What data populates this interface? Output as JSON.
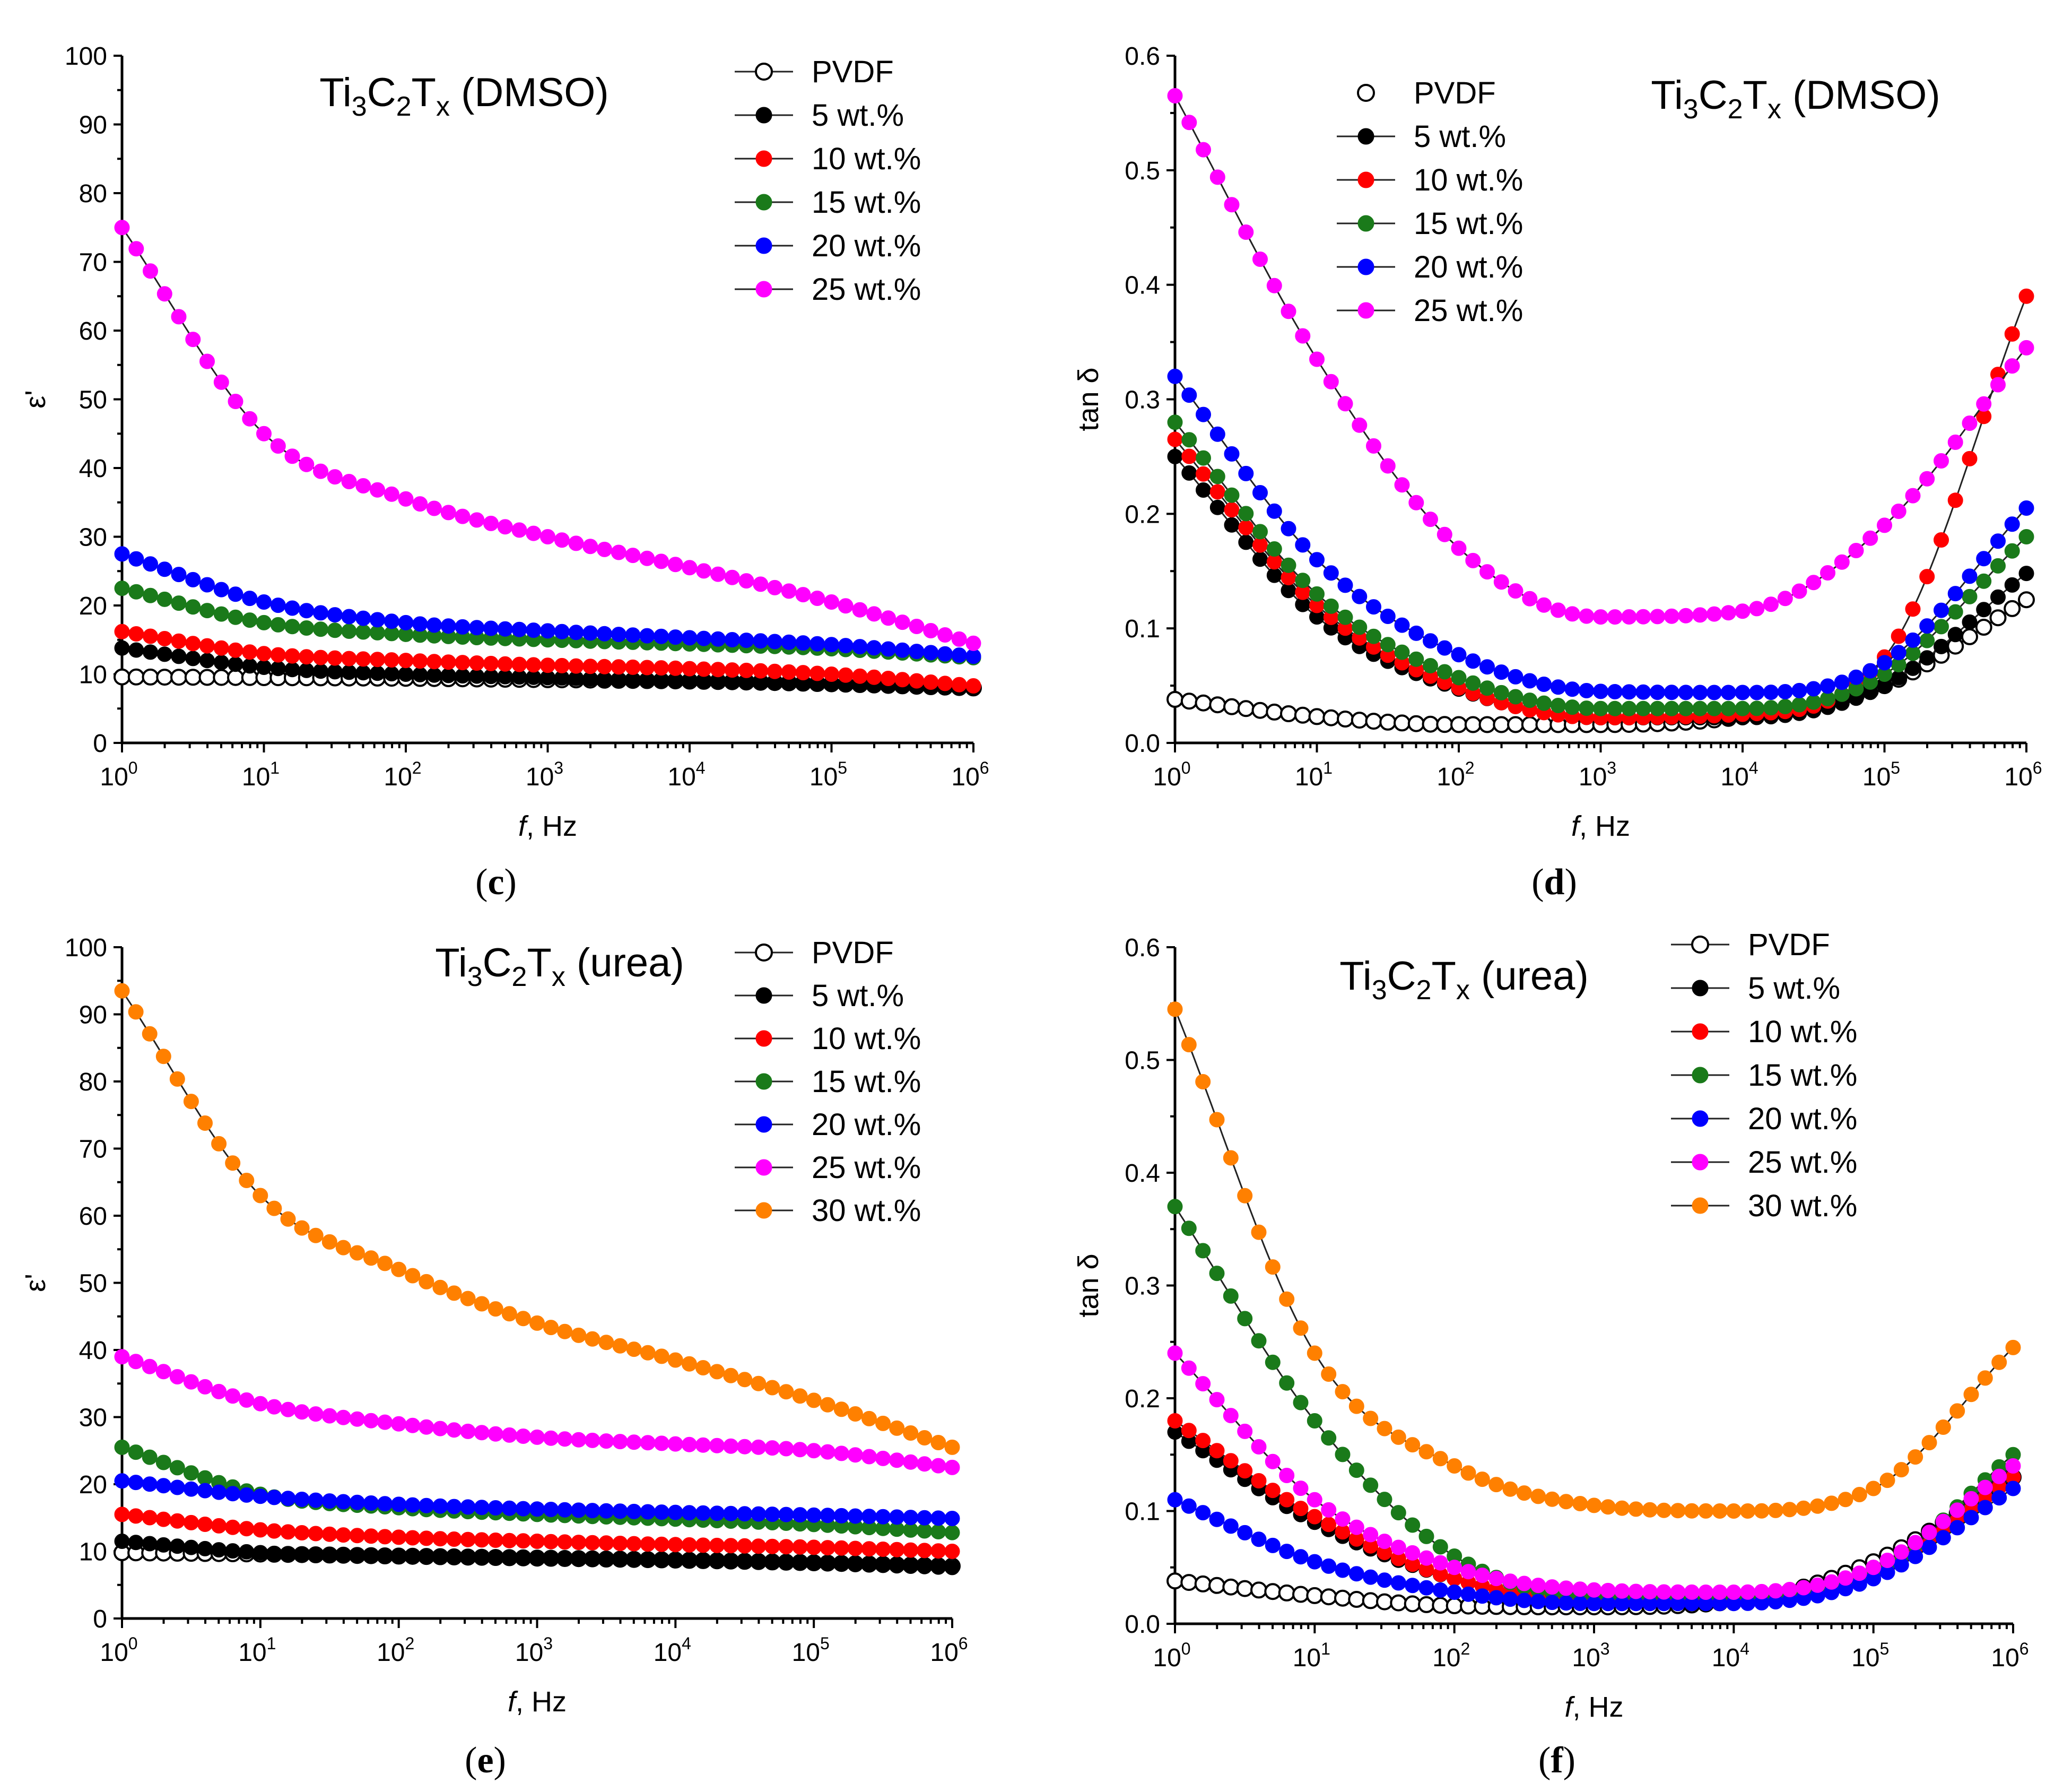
{
  "figure": {
    "panels": [
      "c",
      "d",
      "e",
      "f"
    ]
  },
  "chart_data": [
    {
      "id": "c",
      "type": "scatter",
      "panel_label": "c",
      "title_parts": {
        "ti": "Ti",
        "n3": "3",
        "c": "C",
        "n2": "2",
        "t": "T",
        "x": "x",
        "rest": " (DMSO)"
      },
      "xlabel_italic": "f",
      "xlabel_rest": ", Hz",
      "ylabel": "ε'",
      "xscale": "log",
      "xlim": [
        1,
        1000000
      ],
      "ylim": [
        0,
        100
      ],
      "yticks": [
        0,
        10,
        20,
        30,
        40,
        50,
        60,
        70,
        80,
        90,
        100
      ],
      "ytick_labels": [
        "0",
        "10",
        "20",
        "30",
        "40",
        "50",
        "60",
        "70",
        "80",
        "90",
        "100"
      ],
      "xticks": [
        {
          "base": "10",
          "exp": "0"
        },
        {
          "base": "10",
          "exp": "1"
        },
        {
          "base": "10",
          "exp": "2"
        },
        {
          "base": "10",
          "exp": "3"
        },
        {
          "base": "10",
          "exp": "4"
        },
        {
          "base": "10",
          "exp": "5"
        },
        {
          "base": "10",
          "exp": "6"
        }
      ],
      "legend_position": "top-right",
      "series": [
        {
          "name": "PVDF",
          "color": "#ffffff",
          "edge": "#000000",
          "open": true,
          "log_f": [
            0,
            1,
            2,
            3,
            4,
            5,
            6
          ],
          "values": [
            9.6,
            9.5,
            9.4,
            9.2,
            9.0,
            8.6,
            8.0
          ]
        },
        {
          "name": "5 wt.%",
          "color": "#000000",
          "edge": "#000000",
          "open": false,
          "log_f": [
            0,
            1,
            2,
            3,
            4,
            5,
            6
          ],
          "values": [
            13.8,
            11.0,
            10.0,
            9.5,
            9.0,
            8.6,
            8.0
          ]
        },
        {
          "name": "10 wt.%",
          "color": "#ff0000",
          "edge": "#ff0000",
          "open": false,
          "log_f": [
            0,
            1,
            2,
            3,
            4,
            5,
            6
          ],
          "values": [
            16.2,
            13.0,
            12.0,
            11.3,
            10.8,
            10.0,
            8.3
          ]
        },
        {
          "name": "15 wt.%",
          "color": "#1a7a1a",
          "edge": "#1a7a1a",
          "open": false,
          "log_f": [
            0,
            1,
            2,
            3,
            4,
            5,
            6
          ],
          "values": [
            22.5,
            17.5,
            15.8,
            15.0,
            14.4,
            13.7,
            12.4
          ]
        },
        {
          "name": "20 wt.%",
          "color": "#0000ff",
          "edge": "#0000ff",
          "open": false,
          "log_f": [
            0,
            1,
            2,
            3,
            4,
            5,
            6
          ],
          "values": [
            27.5,
            20.5,
            17.5,
            16.3,
            15.3,
            14.3,
            12.6
          ]
        },
        {
          "name": "25 wt.%",
          "color": "#ff00ff",
          "edge": "#ff00ff",
          "open": false,
          "log_f": [
            0,
            1,
            2,
            3,
            4,
            5,
            6
          ],
          "values": [
            75.0,
            45.0,
            35.5,
            30.0,
            25.5,
            20.5,
            14.5
          ]
        }
      ]
    },
    {
      "id": "d",
      "type": "scatter",
      "panel_label": "d",
      "title_parts": {
        "ti": "Ti",
        "n3": "3",
        "c": "C",
        "n2": "2",
        "t": "T",
        "x": "x",
        "rest": " (DMSO)"
      },
      "xlabel_italic": "f",
      "xlabel_rest": ", Hz",
      "ylabel": "tan δ",
      "xscale": "log",
      "xlim": [
        1,
        1000000
      ],
      "ylim": [
        0,
        0.6
      ],
      "yticks": [
        0,
        0.1,
        0.2,
        0.3,
        0.4,
        0.5,
        0.6
      ],
      "ytick_labels": [
        "0.0",
        "0.1",
        "0.2",
        "0.3",
        "0.4",
        "0.5",
        "0.6"
      ],
      "xticks": [
        {
          "base": "10",
          "exp": "0"
        },
        {
          "base": "10",
          "exp": "1"
        },
        {
          "base": "10",
          "exp": "2"
        },
        {
          "base": "10",
          "exp": "3"
        },
        {
          "base": "10",
          "exp": "4"
        },
        {
          "base": "10",
          "exp": "5"
        },
        {
          "base": "10",
          "exp": "6"
        }
      ],
      "legend_position": "top-left",
      "series": [
        {
          "name": "PVDF",
          "color": "#ffffff",
          "edge": "#000000",
          "open": true,
          "legend_line": false,
          "log_f": [
            0,
            1,
            2,
            3,
            4,
            5,
            6
          ],
          "values": [
            0.038,
            0.023,
            0.016,
            0.016,
            0.023,
            0.05,
            0.125
          ]
        },
        {
          "name": "5 wt.%",
          "color": "#000000",
          "edge": "#000000",
          "open": false,
          "log_f": [
            0,
            1,
            2,
            3,
            4,
            5,
            6
          ],
          "values": [
            0.25,
            0.11,
            0.047,
            0.022,
            0.022,
            0.05,
            0.148
          ]
        },
        {
          "name": "10 wt.%",
          "color": "#ff0000",
          "edge": "#ff0000",
          "open": false,
          "log_f": [
            0,
            1,
            2,
            3,
            4,
            5,
            6
          ],
          "values": [
            0.265,
            0.12,
            0.048,
            0.022,
            0.025,
            0.075,
            0.39
          ]
        },
        {
          "name": "15 wt.%",
          "color": "#1a7a1a",
          "edge": "#1a7a1a",
          "open": false,
          "log_f": [
            0,
            1,
            2,
            3,
            4,
            5,
            6
          ],
          "values": [
            0.28,
            0.13,
            0.057,
            0.03,
            0.03,
            0.06,
            0.18
          ]
        },
        {
          "name": "20 wt.%",
          "color": "#0000ff",
          "edge": "#0000ff",
          "open": false,
          "log_f": [
            0,
            1,
            2,
            3,
            4,
            5,
            6
          ],
          "values": [
            0.32,
            0.16,
            0.077,
            0.045,
            0.044,
            0.07,
            0.205
          ]
        },
        {
          "name": "25 wt.%",
          "color": "#ff00ff",
          "edge": "#ff00ff",
          "open": false,
          "log_f": [
            0,
            1,
            2,
            3,
            4,
            5,
            6
          ],
          "values": [
            0.565,
            0.335,
            0.17,
            0.11,
            0.115,
            0.19,
            0.345
          ]
        }
      ]
    },
    {
      "id": "e",
      "type": "scatter",
      "panel_label": "e",
      "title_parts": {
        "ti": "Ti",
        "n3": "3",
        "c": "C",
        "n2": "2",
        "t": "T",
        "x": "x",
        "rest": " (urea)"
      },
      "xlabel_italic": "f",
      "xlabel_rest": ", Hz",
      "ylabel": "ε'",
      "xscale": "log",
      "xlim": [
        1,
        1000000
      ],
      "ylim": [
        0,
        100
      ],
      "yticks": [
        0,
        10,
        20,
        30,
        40,
        50,
        60,
        70,
        80,
        90,
        100
      ],
      "ytick_labels": [
        "0",
        "10",
        "20",
        "30",
        "40",
        "50",
        "60",
        "70",
        "80",
        "90",
        "100"
      ],
      "xticks": [
        {
          "base": "10",
          "exp": "0"
        },
        {
          "base": "10",
          "exp": "1"
        },
        {
          "base": "10",
          "exp": "2"
        },
        {
          "base": "10",
          "exp": "3"
        },
        {
          "base": "10",
          "exp": "4"
        },
        {
          "base": "10",
          "exp": "5"
        },
        {
          "base": "10",
          "exp": "6"
        }
      ],
      "legend_position": "top-right",
      "series": [
        {
          "name": "PVDF",
          "color": "#ffffff",
          "edge": "#000000",
          "open": true,
          "log_f": [
            0,
            1,
            2,
            3,
            4,
            5,
            6
          ],
          "values": [
            9.8,
            9.6,
            9.3,
            9.0,
            8.7,
            8.3,
            7.8
          ]
        },
        {
          "name": "5 wt.%",
          "color": "#000000",
          "edge": "#000000",
          "open": false,
          "log_f": [
            0,
            1,
            2,
            3,
            4,
            5,
            6
          ],
          "values": [
            11.5,
            9.8,
            9.2,
            8.9,
            8.6,
            8.2,
            7.6
          ]
        },
        {
          "name": "10 wt.%",
          "color": "#ff0000",
          "edge": "#ff0000",
          "open": false,
          "log_f": [
            0,
            1,
            2,
            3,
            4,
            5,
            6
          ],
          "values": [
            15.5,
            13.2,
            12.1,
            11.5,
            11.0,
            10.6,
            10.0
          ]
        },
        {
          "name": "15 wt.%",
          "color": "#1a7a1a",
          "edge": "#1a7a1a",
          "open": false,
          "log_f": [
            0,
            1,
            2,
            3,
            4,
            5,
            6
          ],
          "values": [
            25.5,
            18.5,
            16.5,
            15.5,
            14.8,
            14.0,
            12.8
          ]
        },
        {
          "name": "20 wt.%",
          "color": "#0000ff",
          "edge": "#0000ff",
          "open": false,
          "log_f": [
            0,
            1,
            2,
            3,
            4,
            5,
            6
          ],
          "values": [
            20.5,
            18.2,
            17.0,
            16.3,
            15.8,
            15.4,
            14.9
          ]
        },
        {
          "name": "25 wt.%",
          "color": "#ff00ff",
          "edge": "#ff00ff",
          "open": false,
          "log_f": [
            0,
            1,
            2,
            3,
            4,
            5,
            6
          ],
          "values": [
            39.0,
            32.0,
            29.0,
            27.0,
            26.0,
            25.0,
            22.5
          ]
        },
        {
          "name": "30 wt.%",
          "color": "#ff8000",
          "edge": "#ff8000",
          "open": false,
          "log_f": [
            0,
            1,
            2,
            3,
            4,
            5,
            6
          ],
          "values": [
            93.5,
            63.0,
            52.0,
            44.0,
            38.5,
            32.5,
            25.5
          ]
        }
      ]
    },
    {
      "id": "f",
      "type": "scatter",
      "panel_label": "f",
      "title_parts": {
        "ti": "Ti",
        "n3": "3",
        "c": "C",
        "n2": "2",
        "t": "T",
        "x": "x",
        "rest": " (urea)"
      },
      "xlabel_italic": "f",
      "xlabel_rest": ", Hz",
      "ylabel": "tan δ",
      "xscale": "log",
      "xlim": [
        1,
        1000000
      ],
      "ylim": [
        0,
        0.6
      ],
      "yticks": [
        0,
        0.1,
        0.2,
        0.3,
        0.4,
        0.5,
        0.6
      ],
      "ytick_labels": [
        "0.0",
        "0.1",
        "0.2",
        "0.3",
        "0.4",
        "0.5",
        "0.6"
      ],
      "xticks": [
        {
          "base": "10",
          "exp": "0"
        },
        {
          "base": "10",
          "exp": "1"
        },
        {
          "base": "10",
          "exp": "2"
        },
        {
          "base": "10",
          "exp": "3"
        },
        {
          "base": "10",
          "exp": "4"
        },
        {
          "base": "10",
          "exp": "5"
        },
        {
          "base": "10",
          "exp": "6"
        }
      ],
      "legend_position": "top-right",
      "series": [
        {
          "name": "PVDF",
          "color": "#ffffff",
          "edge": "#000000",
          "open": true,
          "log_f": [
            0,
            1,
            2,
            3,
            4,
            5,
            6
          ],
          "values": [
            0.038,
            0.025,
            0.016,
            0.015,
            0.02,
            0.055,
            0.13
          ]
        },
        {
          "name": "5 wt.%",
          "color": "#000000",
          "edge": "#000000",
          "open": false,
          "log_f": [
            0,
            1,
            2,
            3,
            4,
            5,
            6
          ],
          "values": [
            0.17,
            0.09,
            0.04,
            0.02,
            0.02,
            0.05,
            0.13
          ]
        },
        {
          "name": "10 wt.%",
          "color": "#ff0000",
          "edge": "#ff0000",
          "open": false,
          "log_f": [
            0,
            1,
            2,
            3,
            4,
            5,
            6
          ],
          "values": [
            0.18,
            0.095,
            0.04,
            0.022,
            0.022,
            0.045,
            0.13
          ]
        },
        {
          "name": "15 wt.%",
          "color": "#1a7a1a",
          "edge": "#1a7a1a",
          "open": false,
          "log_f": [
            0,
            1,
            2,
            3,
            4,
            5,
            6
          ],
          "values": [
            0.37,
            0.18,
            0.06,
            0.025,
            0.025,
            0.045,
            0.15
          ]
        },
        {
          "name": "20 wt.%",
          "color": "#0000ff",
          "edge": "#0000ff",
          "open": false,
          "log_f": [
            0,
            1,
            2,
            3,
            4,
            5,
            6
          ],
          "values": [
            0.11,
            0.055,
            0.028,
            0.018,
            0.018,
            0.04,
            0.12
          ]
        },
        {
          "name": "25 wt.%",
          "color": "#ff00ff",
          "edge": "#ff00ff",
          "open": false,
          "log_f": [
            0,
            1,
            2,
            3,
            4,
            5,
            6
          ],
          "values": [
            0.24,
            0.11,
            0.05,
            0.03,
            0.028,
            0.05,
            0.14
          ]
        },
        {
          "name": "30 wt.%",
          "color": "#ff8000",
          "edge": "#ff8000",
          "open": false,
          "log_f": [
            0,
            1,
            2,
            3,
            4,
            5,
            6
          ],
          "values": [
            0.545,
            0.24,
            0.14,
            0.105,
            0.1,
            0.12,
            0.245
          ]
        }
      ]
    }
  ]
}
